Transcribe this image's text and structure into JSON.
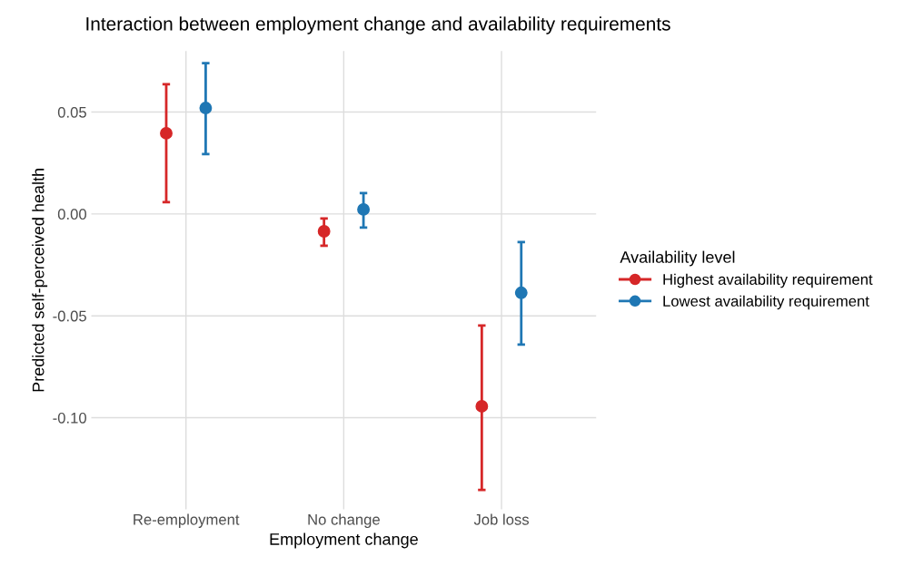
{
  "chart_data": {
    "type": "scatter",
    "title": "Interaction between employment change and availability requirements",
    "xlabel": "Employment change",
    "ylabel": "Predicted self-perceived health",
    "legend_title": "Availability level",
    "categories": [
      "Re-employment",
      "No change",
      "Job loss"
    ],
    "series": [
      {
        "name": "Highest availability requirement",
        "color": "#d62728",
        "values": [
          0.0396,
          -0.0085,
          -0.0944
        ],
        "errors": [
          [
            0.0058,
            0.0637
          ],
          [
            -0.0156,
            -0.0022
          ],
          [
            -0.1354,
            -0.0548
          ]
        ]
      },
      {
        "name": "Lowest availability requirement",
        "color": "#1f77b4",
        "values": [
          0.052,
          0.0022,
          -0.0387
        ],
        "errors": [
          [
            0.0294,
            0.074
          ],
          [
            -0.0067,
            0.0102
          ],
          [
            -0.0641,
            -0.0138
          ]
        ]
      }
    ],
    "ylim": [
      -0.145,
      0.08
    ],
    "yticks": [
      {
        "value": 0.05,
        "label": "0.05"
      },
      {
        "value": 0,
        "label": "0.00"
      },
      {
        "value": -0.05,
        "label": "-0.05"
      },
      {
        "value": -0.1,
        "label": "-0.10"
      }
    ],
    "grid": true,
    "legend": "right",
    "marker": "circle"
  }
}
